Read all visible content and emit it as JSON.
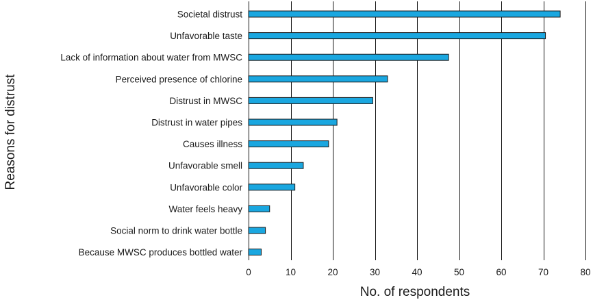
{
  "chart_data": {
    "type": "bar",
    "orientation": "horizontal",
    "categories": [
      "Societal distrust",
      "Unfavorable taste",
      "Lack of information about water from MWSC",
      "Perceived presence of chlorine",
      "Distrust in MWSC",
      "Distrust in water pipes",
      "Causes illness",
      "Unfavorable smell",
      "Unfavorable color",
      "Water feels heavy",
      "Social norm to drink water bottle",
      "Because MWSC produces bottled water"
    ],
    "values": [
      74,
      70.5,
      47.5,
      33,
      29.5,
      21,
      19,
      13,
      11,
      5,
      4,
      3
    ],
    "xlabel": "No. of respondents",
    "ylabel": "Reasons for distrust",
    "xlim": [
      0,
      80
    ],
    "xticks": [
      0,
      10,
      20,
      30,
      40,
      50,
      60,
      70,
      80
    ],
    "grid": "vertical",
    "bar_color": "#1aa7e0"
  }
}
